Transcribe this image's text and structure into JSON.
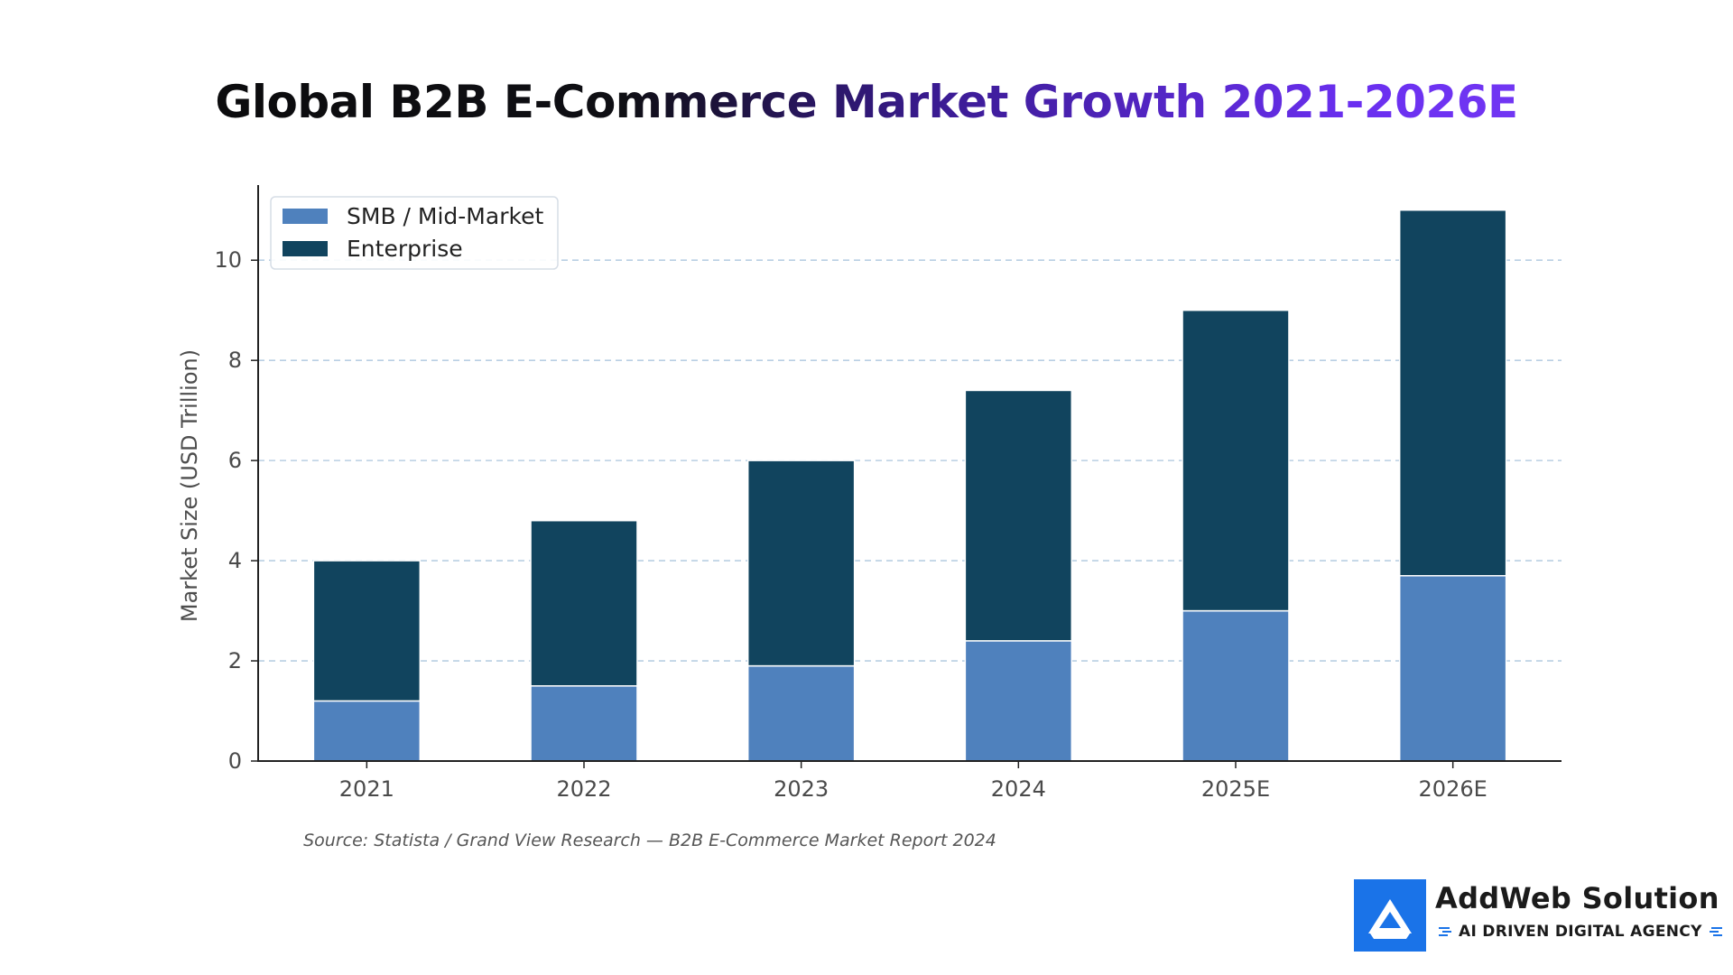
{
  "title": "Global B2B E-Commerce Market Growth 2021-2026E",
  "source": "Source: Statista / Grand View Research — B2B E-Commerce Market Report 2024",
  "brand": {
    "name": "AddWeb Solution",
    "tagline": "AI DRIVEN DIGITAL AGENCY",
    "logo_icon": "addweb-a-logo-icon",
    "accent_color": "#1a73e8"
  },
  "chart_data": {
    "type": "bar",
    "stacked": true,
    "title": "Global B2B E-Commerce Market Growth 2021-2026E",
    "xlabel": "",
    "ylabel": "Market Size (USD Trillion)",
    "categories": [
      "2021",
      "2022",
      "2023",
      "2024",
      "2025E",
      "2026E"
    ],
    "series": [
      {
        "name": "SMB / Mid-Market",
        "color": "#4f81bd",
        "values": [
          1.2,
          1.5,
          1.9,
          2.4,
          3.0,
          3.7
        ]
      },
      {
        "name": "Enterprise",
        "color": "#11445e",
        "values": [
          2.8,
          3.3,
          4.1,
          5.0,
          6.0,
          7.3
        ]
      }
    ],
    "ylim": [
      0,
      11.5
    ],
    "yticks": [
      0,
      2,
      4,
      6,
      8,
      10
    ],
    "grid": "horizontal dashed",
    "legend_position": "top-left"
  }
}
